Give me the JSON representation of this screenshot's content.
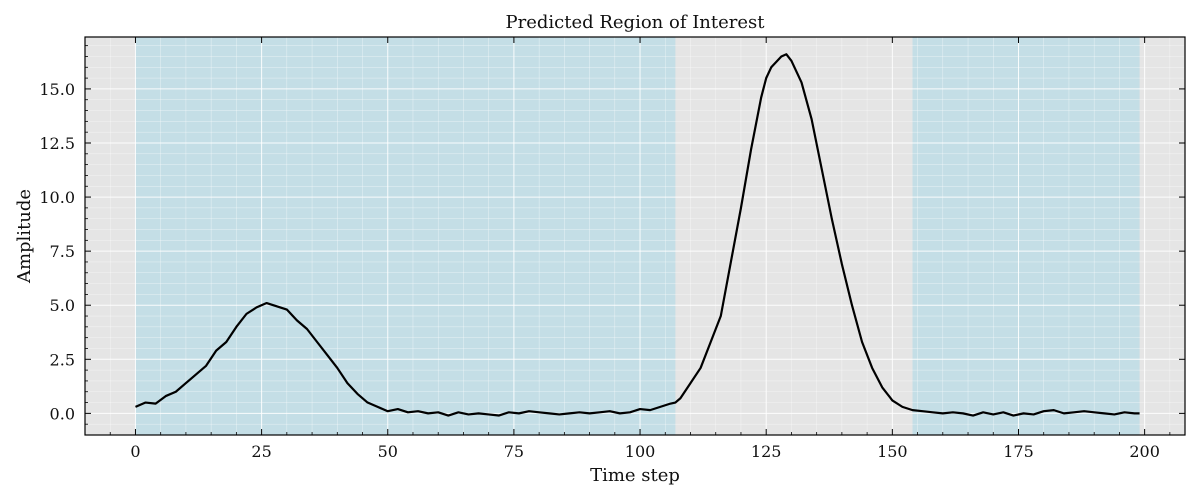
{
  "chart_data": {
    "type": "line",
    "title": "Predicted Region of Interest",
    "xlabel": "Time step",
    "ylabel": "Amplitude",
    "xlim": [
      -10,
      208
    ],
    "ylim": [
      -1.0,
      17.4
    ],
    "grid": true,
    "x_ticks": [
      0,
      25,
      50,
      75,
      100,
      125,
      150,
      175,
      200
    ],
    "x_tick_labels": [
      "0",
      "25",
      "50",
      "75",
      "100",
      "125",
      "150",
      "175",
      "200"
    ],
    "y_ticks": [
      0,
      2.5,
      5,
      7.5,
      10,
      12.5,
      15
    ],
    "y_tick_labels": [
      "0.0",
      "2.5",
      "5.0",
      "7.5",
      "10.0",
      "12.5",
      "15.0"
    ],
    "regions": [
      {
        "name": "predicted-region-1",
        "start": 0,
        "end": 107
      },
      {
        "name": "predicted-region-2",
        "start": 154,
        "end": 199
      }
    ],
    "series": [
      {
        "name": "signal",
        "x": [
          0,
          2,
          4,
          6,
          8,
          10,
          12,
          14,
          16,
          18,
          20,
          22,
          24,
          26,
          28,
          30,
          32,
          34,
          36,
          38,
          40,
          42,
          44,
          46,
          48,
          50,
          52,
          54,
          56,
          58,
          60,
          62,
          64,
          66,
          68,
          70,
          72,
          74,
          76,
          78,
          80,
          82,
          84,
          86,
          88,
          90,
          92,
          94,
          96,
          98,
          100,
          102,
          104,
          106,
          107,
          108,
          110,
          112,
          114,
          116,
          118,
          120,
          122,
          124,
          125,
          126,
          128,
          129,
          130,
          132,
          134,
          136,
          138,
          140,
          142,
          144,
          146,
          148,
          150,
          152,
          154,
          156,
          158,
          160,
          162,
          164,
          166,
          168,
          170,
          172,
          174,
          176,
          178,
          180,
          182,
          184,
          186,
          188,
          190,
          192,
          194,
          196,
          198,
          199
        ],
        "values": [
          0.3,
          0.5,
          0.45,
          0.8,
          1.0,
          1.4,
          1.8,
          2.2,
          2.9,
          3.3,
          4.0,
          4.6,
          4.9,
          5.1,
          4.95,
          4.8,
          4.3,
          3.9,
          3.3,
          2.7,
          2.1,
          1.4,
          0.9,
          0.5,
          0.3,
          0.1,
          0.2,
          0.05,
          0.1,
          0.0,
          0.05,
          -0.1,
          0.05,
          -0.05,
          0.0,
          -0.05,
          -0.1,
          0.05,
          0.0,
          0.1,
          0.05,
          0.0,
          -0.05,
          0.0,
          0.05,
          0.0,
          0.05,
          0.1,
          0.0,
          0.05,
          0.2,
          0.15,
          0.3,
          0.45,
          0.5,
          0.7,
          1.4,
          2.1,
          3.3,
          4.5,
          7.0,
          9.5,
          12.2,
          14.6,
          15.5,
          16.0,
          16.5,
          16.6,
          16.3,
          15.3,
          13.6,
          11.3,
          9.0,
          6.9,
          5.0,
          3.3,
          2.1,
          1.2,
          0.6,
          0.3,
          0.15,
          0.1,
          0.05,
          0.0,
          0.05,
          0.0,
          -0.1,
          0.05,
          -0.05,
          0.05,
          -0.1,
          0.0,
          -0.05,
          0.1,
          0.15,
          0.0,
          0.05,
          0.1,
          0.05,
          0.0,
          -0.05,
          0.05,
          0.0,
          0.0
        ]
      }
    ]
  }
}
